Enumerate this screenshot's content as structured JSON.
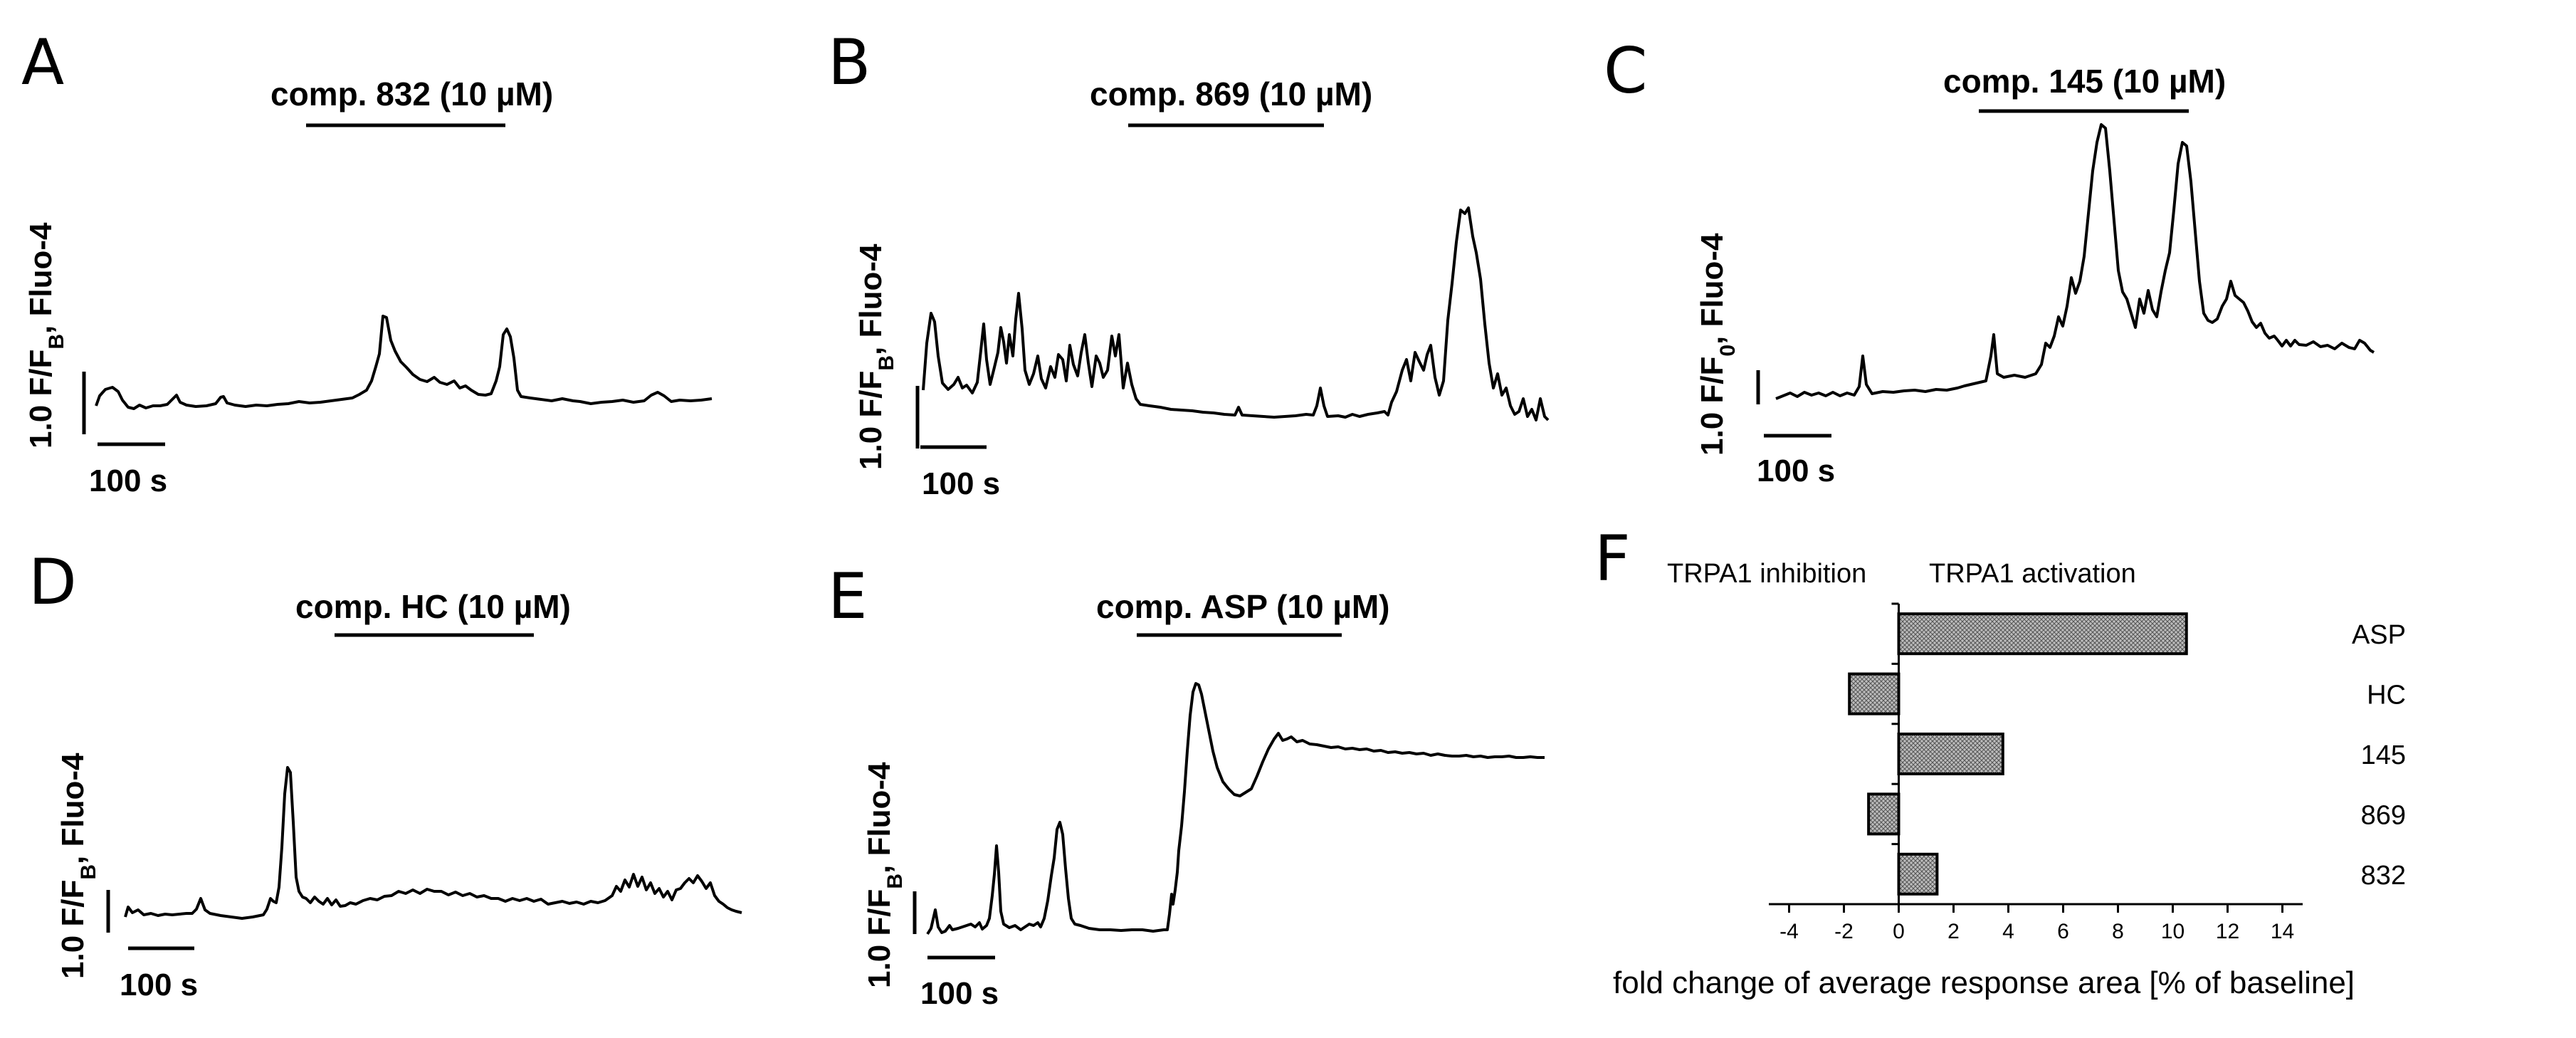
{
  "traces": [
    {
      "letter": "A",
      "compound": "comp. 832 (10 µM)",
      "ylabel": "1.0 F/F",
      "ysub": "B",
      "ysuffix": ", Fluo-4",
      "timebar": "100 s"
    },
    {
      "letter": "B",
      "compound": "comp. 869 (10 µM)",
      "ylabel": "1.0 F/F",
      "ysub": "B",
      "ysuffix": ", Fluo-4",
      "timebar": "100 s"
    },
    {
      "letter": "C",
      "compound": "comp. 145 (10 µM)",
      "ylabel": "1.0 F/F",
      "ysub": "0",
      "ysuffix": ", Fluo-4",
      "timebar": "100 s"
    },
    {
      "letter": "D",
      "compound": "comp. HC (10 µM)",
      "ylabel": "1.0 F/F",
      "ysub": "B",
      "ysuffix": ", Fluo-4",
      "timebar": "100 s"
    },
    {
      "letter": "E",
      "compound": "comp. ASP (10 µM)",
      "ylabel": "1.0 F/F",
      "ysub": "B",
      "ysuffix": ", Fluo-4",
      "timebar": "100 s"
    }
  ],
  "panelF": {
    "letter": "F",
    "header_left": "TRPA1 inhibition",
    "header_right": "TRPA1 activation"
  },
  "chart_data": {
    "type": "bar",
    "orientation": "horizontal",
    "categories": [
      "ASP",
      "HC",
      "145",
      "869",
      "832"
    ],
    "values": [
      10.5,
      -1.8,
      3.8,
      -1.1,
      1.4
    ],
    "xlabel": "fold change of average response area [% of baseline]",
    "ylabel": "",
    "xlim": [
      -5,
      15
    ],
    "xticks": [
      "-4",
      "-2",
      "0",
      "2",
      "4",
      "6",
      "8",
      "10",
      "12",
      "14"
    ],
    "grid": false,
    "bar_pattern": "crosshatch-gray"
  }
}
